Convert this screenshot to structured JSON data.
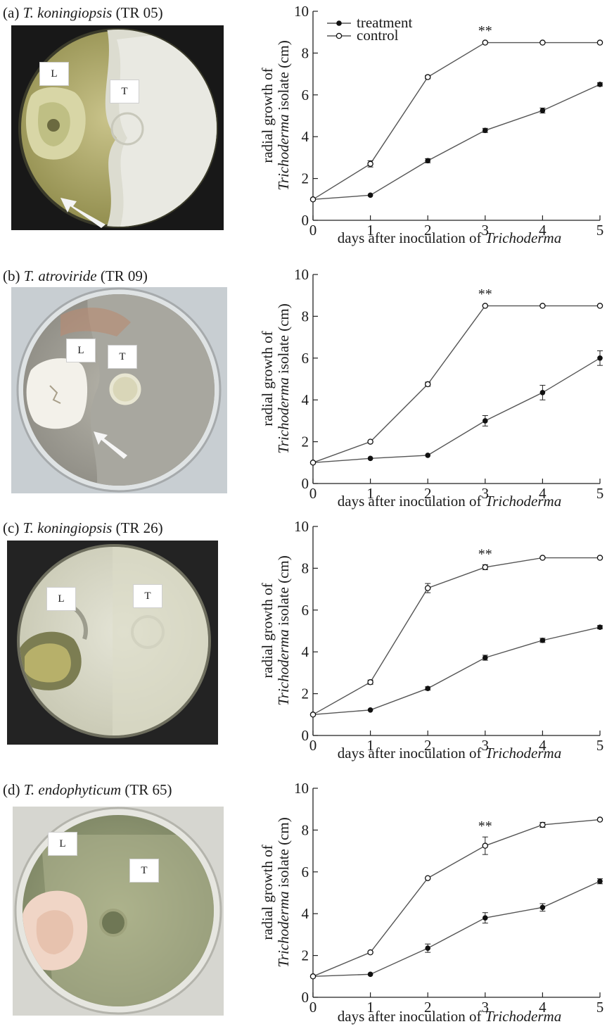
{
  "legend": {
    "treatment_label": "treatment",
    "control_label": "control"
  },
  "colors": {
    "line": "#555555",
    "marker": "#111111"
  },
  "photo_labels": {
    "left": "L",
    "right": "T"
  },
  "panels": [
    {
      "letter": "(a)",
      "species": "T. koningiopsis",
      "isolate": "(TR 05)",
      "ylabel_line1": "radial growth of",
      "ylabel_italic": "Trichoderma",
      "ylabel_rest": " isolate (cm)",
      "xlabel_text": "days after inoculation of ",
      "xlabel_italic": "Trichoderma",
      "significance": "**",
      "plate_style": "yellow-agar-white-mycelium",
      "arrow": true
    },
    {
      "letter": "(b)",
      "species": "T. atroviride",
      "isolate": "(TR 09)",
      "ylabel_line1": "radial growth of",
      "ylabel_italic": "Trichoderma",
      "ylabel_rest": " isolate (cm)",
      "xlabel_text": "days after inoculation of ",
      "xlabel_italic": "Trichoderma",
      "significance": "**",
      "plate_style": "grey-agar",
      "arrow": true
    },
    {
      "letter": "(c)",
      "species": "T. koningiopsis",
      "isolate": "(TR 26)",
      "ylabel_line1": "radial growth of",
      "ylabel_italic": "Trichoderma",
      "ylabel_rest": " isolate (cm)",
      "xlabel_text": "days after inoculation of ",
      "xlabel_italic": "Trichoderma",
      "significance": "**",
      "plate_style": "white-mycelium-dark-background",
      "arrow": false
    },
    {
      "letter": "(d)",
      "species": "T. endophyticum",
      "isolate": "(TR 65)",
      "ylabel_line1": "radial growth of",
      "ylabel_italic": "Trichoderma",
      "ylabel_rest": " isolate (cm)",
      "xlabel_text": "days after inoculation of ",
      "xlabel_italic": "Trichoderma",
      "significance": "**",
      "plate_style": "green-mycelium-pink-colony",
      "arrow": false
    }
  ],
  "chart_data": [
    {
      "type": "line",
      "x": [
        0,
        1,
        2,
        3,
        4,
        5
      ],
      "xlim": [
        0,
        5
      ],
      "ylim": [
        0,
        10
      ],
      "xticks": [
        "0",
        "1",
        "2",
        "3",
        "4",
        "5"
      ],
      "yticks": [
        "0",
        "2",
        "4",
        "6",
        "8",
        "10"
      ],
      "xlabel": "days after inoculation of Trichoderma",
      "ylabel": "radial growth of Trichoderma isolate (cm)",
      "legend_position": "top-left",
      "annotation": {
        "text": "**",
        "x": 3
      },
      "series": [
        {
          "name": "treatment",
          "marker": "filled",
          "values": [
            1.0,
            1.2,
            2.85,
            4.3,
            5.25,
            6.5
          ],
          "errors": [
            0.05,
            0.05,
            0.1,
            0.1,
            0.12,
            0.08
          ]
        },
        {
          "name": "control",
          "marker": "open",
          "values": [
            1.0,
            2.7,
            6.85,
            8.5,
            8.5,
            8.5
          ],
          "errors": [
            0.05,
            0.15,
            0.08,
            0.05,
            0.05,
            0.05
          ]
        }
      ]
    },
    {
      "type": "line",
      "x": [
        0,
        1,
        2,
        3,
        4,
        5
      ],
      "xlim": [
        0,
        5
      ],
      "ylim": [
        0,
        10
      ],
      "xticks": [
        "0",
        "1",
        "2",
        "3",
        "4",
        "5"
      ],
      "yticks": [
        "0",
        "2",
        "4",
        "6",
        "8",
        "10"
      ],
      "xlabel": "days after inoculation of Trichoderma",
      "ylabel": "radial growth of Trichoderma isolate (cm)",
      "annotation": {
        "text": "**",
        "x": 3
      },
      "series": [
        {
          "name": "treatment",
          "marker": "filled",
          "values": [
            1.0,
            1.2,
            1.35,
            3.0,
            4.35,
            6.0
          ],
          "errors": [
            0.05,
            0.05,
            0.05,
            0.25,
            0.35,
            0.35
          ]
        },
        {
          "name": "control",
          "marker": "open",
          "values": [
            1.0,
            2.0,
            4.75,
            8.5,
            8.5,
            8.5
          ],
          "errors": [
            0.05,
            0.06,
            0.1,
            0.05,
            0.05,
            0.05
          ]
        }
      ]
    },
    {
      "type": "line",
      "x": [
        0,
        1,
        2,
        3,
        4,
        5
      ],
      "xlim": [
        0,
        5
      ],
      "ylim": [
        0,
        10
      ],
      "xticks": [
        "0",
        "1",
        "2",
        "3",
        "4",
        "5"
      ],
      "yticks": [
        "0",
        "2",
        "4",
        "6",
        "8",
        "10"
      ],
      "xlabel": "days after inoculation of Trichoderma",
      "ylabel": "radial growth of Trichoderma isolate (cm)",
      "annotation": {
        "text": "**",
        "x": 3
      },
      "series": [
        {
          "name": "treatment",
          "marker": "filled",
          "values": [
            1.0,
            1.22,
            2.25,
            3.72,
            4.55,
            5.18
          ],
          "errors": [
            0.05,
            0.05,
            0.08,
            0.12,
            0.1,
            0.08
          ]
        },
        {
          "name": "control",
          "marker": "open",
          "values": [
            1.0,
            2.55,
            7.05,
            8.05,
            8.5,
            8.5
          ],
          "errors": [
            0.05,
            0.1,
            0.22,
            0.12,
            0.05,
            0.05
          ]
        }
      ]
    },
    {
      "type": "line",
      "x": [
        0,
        1,
        2,
        3,
        4,
        5
      ],
      "xlim": [
        0,
        5
      ],
      "ylim": [
        0,
        10
      ],
      "xticks": [
        "0",
        "1",
        "2",
        "3",
        "4",
        "5"
      ],
      "yticks": [
        "0",
        "2",
        "4",
        "6",
        "8",
        "10"
      ],
      "xlabel": "days after inoculation of Trichoderma",
      "ylabel": "radial growth of Trichoderma isolate (cm)",
      "annotation": {
        "text": "**",
        "x": 3
      },
      "series": [
        {
          "name": "treatment",
          "marker": "filled",
          "values": [
            1.0,
            1.1,
            2.35,
            3.8,
            4.3,
            5.55
          ],
          "errors": [
            0.05,
            0.05,
            0.2,
            0.25,
            0.18,
            0.12
          ]
        },
        {
          "name": "control",
          "marker": "open",
          "values": [
            1.0,
            2.15,
            5.7,
            7.25,
            8.25,
            8.5
          ],
          "errors": [
            0.05,
            0.05,
            0.06,
            0.42,
            0.12,
            0.05
          ]
        }
      ]
    }
  ]
}
